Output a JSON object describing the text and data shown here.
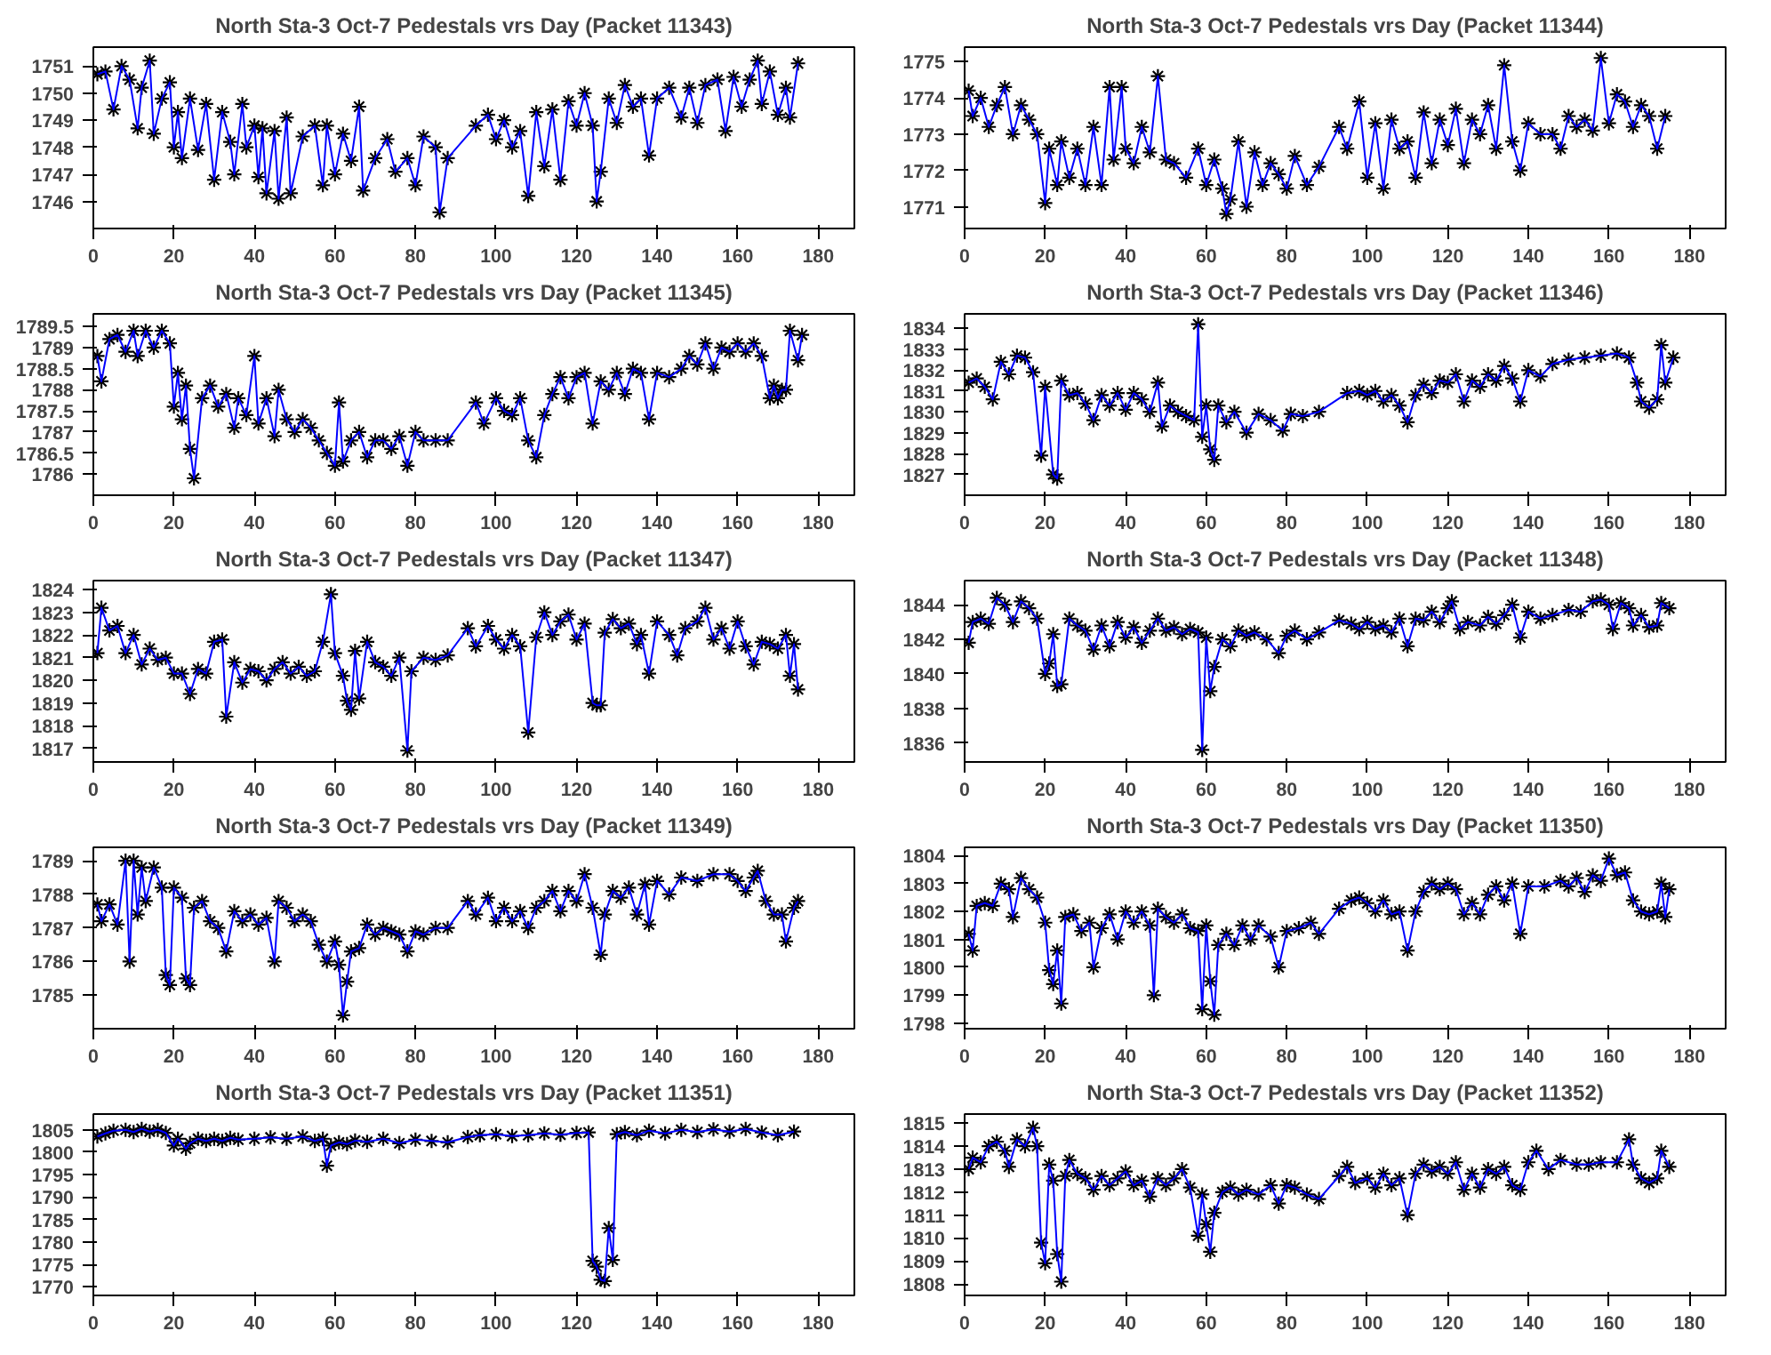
{
  "chart_data": [
    {
      "type": "line",
      "title": "North Sta-3 Oct-7 Pedestals vrs Day (Packet 11343)",
      "color": "#0000ff",
      "marker": "cross",
      "grid": false,
      "xlim": [
        0,
        189
      ],
      "xticks": [
        0,
        20,
        40,
        60,
        80,
        100,
        120,
        140,
        160,
        180
      ],
      "ylim": [
        1745.0,
        1751.7
      ],
      "yticks": [
        1746,
        1747,
        1748,
        1749,
        1750,
        1751
      ],
      "x": [
        1,
        3,
        5,
        7,
        9,
        11,
        12,
        14,
        15,
        17,
        19,
        20,
        21,
        22,
        24,
        26,
        28,
        30,
        32,
        34,
        35,
        37,
        38,
        40,
        41,
        42,
        43,
        45,
        46,
        48,
        49,
        52,
        55,
        57,
        58,
        60,
        62,
        64,
        66,
        67,
        70,
        73,
        75,
        78,
        80,
        82,
        85,
        86,
        88,
        95,
        98,
        100,
        102,
        104,
        106,
        108,
        110,
        112,
        114,
        116,
        118,
        120,
        122,
        124,
        125,
        126,
        128,
        130,
        132,
        134,
        136,
        138,
        140,
        143,
        146,
        148,
        150,
        152,
        155,
        157,
        159,
        161,
        163,
        165,
        166,
        168,
        170,
        172,
        173,
        175
      ],
      "values": [
        1750.7,
        1750.8,
        1749.4,
        1751.0,
        1750.5,
        1748.7,
        1750.2,
        1751.2,
        1748.5,
        1749.8,
        1750.4,
        1748.0,
        1749.3,
        1747.6,
        1749.8,
        1747.9,
        1749.6,
        1746.8,
        1749.3,
        1748.2,
        1747.0,
        1749.6,
        1748.0,
        1748.8,
        1746.9,
        1748.7,
        1746.3,
        1748.6,
        1746.1,
        1749.1,
        1746.3,
        1748.4,
        1748.8,
        1746.6,
        1748.8,
        1747.0,
        1748.5,
        1747.5,
        1749.5,
        1746.4,
        1747.6,
        1748.3,
        1747.1,
        1747.6,
        1746.6,
        1748.4,
        1748.0,
        1745.6,
        1747.6,
        1748.8,
        1749.2,
        1748.3,
        1749.0,
        1748.0,
        1748.6,
        1746.2,
        1749.3,
        1747.3,
        1749.4,
        1746.8,
        1749.7,
        1748.8,
        1750.0,
        1748.8,
        1746.0,
        1747.1,
        1749.8,
        1748.9,
        1750.3,
        1749.5,
        1749.8,
        1747.7,
        1749.8,
        1750.2,
        1749.1,
        1750.2,
        1748.9,
        1750.3,
        1750.5,
        1748.6,
        1750.6,
        1749.5,
        1750.5,
        1751.2,
        1749.6,
        1750.8,
        1749.2,
        1750.2,
        1749.1,
        1751.1
      ]
    },
    {
      "type": "line",
      "title": "North Sta-3 Oct-7 Pedestals vrs Day (Packet 11344)",
      "color": "#0000ff",
      "marker": "cross",
      "grid": false,
      "xlim": [
        0,
        189
      ],
      "xticks": [
        0,
        20,
        40,
        60,
        80,
        100,
        120,
        140,
        160,
        180
      ],
      "ylim": [
        1770.4,
        1775.4
      ],
      "yticks": [
        1771,
        1772,
        1773,
        1774,
        1775
      ],
      "x": [
        1,
        2,
        4,
        6,
        8,
        10,
        12,
        14,
        16,
        18,
        20,
        21,
        23,
        24,
        26,
        28,
        30,
        32,
        34,
        36,
        37,
        39,
        40,
        42,
        44,
        46,
        48,
        50,
        52,
        55,
        58,
        60,
        62,
        64,
        65,
        66,
        68,
        70,
        72,
        74,
        76,
        78,
        80,
        82,
        85,
        88,
        93,
        95,
        98,
        100,
        102,
        104,
        106,
        108,
        110,
        112,
        114,
        116,
        118,
        120,
        122,
        124,
        126,
        128,
        130,
        132,
        134,
        136,
        138,
        140,
        143,
        146,
        148,
        150,
        152,
        154,
        156,
        158,
        160,
        162,
        164,
        166,
        168,
        170,
        172,
        174
      ],
      "values": [
        1774.2,
        1773.5,
        1774.0,
        1773.2,
        1773.8,
        1774.3,
        1773.0,
        1773.8,
        1773.4,
        1773.0,
        1771.1,
        1772.6,
        1771.6,
        1772.8,
        1771.8,
        1772.6,
        1771.6,
        1773.2,
        1771.6,
        1774.3,
        1772.3,
        1774.3,
        1772.6,
        1772.2,
        1773.2,
        1772.5,
        1774.6,
        1772.3,
        1772.2,
        1771.8,
        1772.6,
        1771.6,
        1772.3,
        1771.5,
        1770.8,
        1771.2,
        1772.8,
        1771.0,
        1772.5,
        1771.6,
        1772.2,
        1771.9,
        1771.5,
        1772.4,
        1771.6,
        1772.1,
        1773.2,
        1772.6,
        1773.9,
        1771.8,
        1773.3,
        1771.5,
        1773.4,
        1772.6,
        1772.8,
        1771.8,
        1773.6,
        1772.2,
        1773.4,
        1772.7,
        1773.7,
        1772.2,
        1773.4,
        1773.0,
        1773.8,
        1772.6,
        1774.9,
        1772.8,
        1772.0,
        1773.3,
        1773.0,
        1773.0,
        1772.6,
        1773.5,
        1773.2,
        1773.4,
        1773.1,
        1775.1,
        1773.3,
        1774.1,
        1773.9,
        1773.2,
        1773.8,
        1773.5,
        1772.6,
        1773.5
      ]
    },
    {
      "type": "line",
      "title": "North Sta-3 Oct-7 Pedestals vrs Day (Packet 11345)",
      "color": "#0000ff",
      "marker": "cross",
      "grid": false,
      "xlim": [
        0,
        189
      ],
      "xticks": [
        0,
        20,
        40,
        60,
        80,
        100,
        120,
        140,
        160,
        180
      ],
      "ylim": [
        1785.5,
        1789.8
      ],
      "yticks": [
        1786,
        1786.5,
        1787,
        1787.5,
        1788,
        1788.5,
        1789,
        1789.5
      ],
      "x": [
        1,
        2,
        4,
        6,
        8,
        10,
        11,
        13,
        15,
        17,
        19,
        20,
        21,
        22,
        23,
        24,
        25,
        27,
        29,
        31,
        33,
        35,
        36,
        38,
        40,
        41,
        43,
        45,
        46,
        48,
        50,
        52,
        54,
        56,
        58,
        60,
        61,
        62,
        64,
        66,
        68,
        70,
        72,
        74,
        76,
        78,
        80,
        82,
        85,
        88,
        95,
        97,
        100,
        102,
        104,
        106,
        108,
        110,
        112,
        114,
        116,
        118,
        120,
        122,
        124,
        126,
        128,
        130,
        132,
        134,
        136,
        138,
        140,
        143,
        146,
        148,
        150,
        152,
        154,
        156,
        158,
        160,
        162,
        164,
        166,
        168,
        169,
        170,
        171,
        172,
        173,
        175,
        176
      ],
      "values": [
        1788.8,
        1788.2,
        1789.2,
        1789.3,
        1788.9,
        1789.4,
        1788.8,
        1789.4,
        1789.0,
        1789.4,
        1789.1,
        1787.6,
        1788.4,
        1787.3,
        1788.1,
        1786.6,
        1785.9,
        1787.8,
        1788.1,
        1787.6,
        1787.9,
        1787.1,
        1787.8,
        1787.4,
        1788.8,
        1787.2,
        1787.8,
        1786.9,
        1788.0,
        1787.3,
        1787.0,
        1787.3,
        1787.1,
        1786.8,
        1786.5,
        1786.2,
        1787.7,
        1786.3,
        1786.8,
        1787.0,
        1786.4,
        1786.8,
        1786.8,
        1786.6,
        1786.9,
        1786.2,
        1787.0,
        1786.8,
        1786.8,
        1786.8,
        1787.7,
        1787.2,
        1787.8,
        1787.5,
        1787.4,
        1787.8,
        1786.8,
        1786.4,
        1787.4,
        1787.9,
        1788.3,
        1787.8,
        1788.3,
        1788.4,
        1787.2,
        1788.2,
        1788.0,
        1788.4,
        1787.9,
        1788.5,
        1788.4,
        1787.3,
        1788.4,
        1788.3,
        1788.5,
        1788.8,
        1788.6,
        1789.1,
        1788.5,
        1789.0,
        1788.9,
        1789.1,
        1788.9,
        1789.1,
        1788.8,
        1787.8,
        1788.1,
        1787.8,
        1788.0,
        1788.0,
        1789.4,
        1788.7,
        1789.3
      ]
    },
    {
      "type": "line",
      "title": "North Sta-3 Oct-7 Pedestals vrs Day (Packet 11346)",
      "color": "#0000ff",
      "marker": "cross",
      "grid": false,
      "xlim": [
        0,
        189
      ],
      "xticks": [
        0,
        20,
        40,
        60,
        80,
        100,
        120,
        140,
        160,
        180
      ],
      "ylim": [
        1826.0,
        1834.7
      ],
      "yticks": [
        1827,
        1828,
        1829,
        1830,
        1831,
        1832,
        1833,
        1834
      ],
      "x": [
        1,
        3,
        5,
        7,
        9,
        11,
        13,
        15,
        17,
        19,
        20,
        22,
        23,
        24,
        26,
        28,
        30,
        32,
        34,
        36,
        38,
        40,
        42,
        44,
        46,
        48,
        49,
        51,
        53,
        55,
        57,
        58,
        59,
        60,
        61,
        62,
        63,
        65,
        67,
        70,
        73,
        76,
        79,
        81,
        84,
        88,
        95,
        98,
        100,
        102,
        104,
        106,
        108,
        110,
        112,
        114,
        116,
        118,
        120,
        122,
        124,
        126,
        128,
        130,
        132,
        134,
        136,
        138,
        140,
        143,
        146,
        150,
        154,
        158,
        162,
        165,
        167,
        168,
        170,
        172,
        173,
        174,
        176
      ],
      "values": [
        1831.4,
        1831.6,
        1831.2,
        1830.6,
        1832.4,
        1831.8,
        1832.7,
        1832.6,
        1831.9,
        1827.9,
        1831.2,
        1827.0,
        1826.8,
        1831.5,
        1830.8,
        1830.9,
        1830.4,
        1829.6,
        1830.8,
        1830.3,
        1830.9,
        1830.1,
        1830.9,
        1830.6,
        1830.0,
        1831.4,
        1829.3,
        1830.3,
        1830.0,
        1829.8,
        1829.6,
        1834.2,
        1828.8,
        1830.3,
        1828.2,
        1827.7,
        1830.3,
        1829.5,
        1830.0,
        1829.0,
        1829.9,
        1829.6,
        1829.1,
        1829.9,
        1829.8,
        1830.0,
        1830.9,
        1831.0,
        1830.8,
        1831.0,
        1830.5,
        1830.8,
        1830.3,
        1829.5,
        1830.8,
        1831.3,
        1830.9,
        1831.5,
        1831.4,
        1831.8,
        1830.5,
        1831.5,
        1831.2,
        1831.8,
        1831.5,
        1832.2,
        1831.6,
        1830.5,
        1832.0,
        1831.7,
        1832.3,
        1832.5,
        1832.6,
        1832.7,
        1832.8,
        1832.6,
        1831.4,
        1830.5,
        1830.2,
        1830.6,
        1833.2,
        1831.4,
        1832.6
      ]
    },
    {
      "type": "line",
      "title": "North Sta-3 Oct-7 Pedestals vrs Day (Packet 11347)",
      "color": "#0000ff",
      "marker": "cross",
      "grid": false,
      "xlim": [
        0,
        189
      ],
      "xticks": [
        0,
        20,
        40,
        60,
        80,
        100,
        120,
        140,
        160,
        180
      ],
      "ylim": [
        1816.4,
        1824.4
      ],
      "yticks": [
        1817,
        1818,
        1819,
        1820,
        1821,
        1822,
        1823,
        1824
      ],
      "x": [
        1,
        2,
        4,
        6,
        8,
        10,
        12,
        14,
        16,
        18,
        20,
        22,
        24,
        26,
        28,
        30,
        32,
        33,
        35,
        37,
        39,
        41,
        43,
        45,
        47,
        49,
        51,
        53,
        55,
        57,
        59,
        60,
        62,
        63,
        64,
        65,
        66,
        68,
        70,
        72,
        74,
        76,
        78,
        79,
        82,
        85,
        88,
        93,
        95,
        98,
        100,
        102,
        104,
        106,
        108,
        110,
        112,
        114,
        116,
        118,
        120,
        122,
        124,
        125,
        126,
        127,
        129,
        131,
        133,
        135,
        136,
        138,
        140,
        143,
        145,
        147,
        150,
        152,
        154,
        156,
        158,
        160,
        162,
        164,
        166,
        168,
        170,
        172,
        173,
        174,
        175
      ],
      "values": [
        1821.2,
        1823.2,
        1822.2,
        1822.4,
        1821.2,
        1822.0,
        1820.7,
        1821.4,
        1820.9,
        1821.0,
        1820.3,
        1820.3,
        1819.4,
        1820.5,
        1820.3,
        1821.7,
        1821.8,
        1818.4,
        1820.8,
        1819.9,
        1820.5,
        1820.4,
        1820.0,
        1820.5,
        1820.8,
        1820.3,
        1820.6,
        1820.2,
        1820.4,
        1821.7,
        1823.8,
        1821.2,
        1820.2,
        1819.1,
        1818.7,
        1821.3,
        1819.2,
        1821.7,
        1820.8,
        1820.6,
        1820.2,
        1821.0,
        1816.9,
        1820.4,
        1821.0,
        1820.9,
        1821.1,
        1822.3,
        1821.5,
        1822.4,
        1821.8,
        1821.4,
        1822.0,
        1821.5,
        1817.7,
        1821.9,
        1823.0,
        1822.0,
        1822.6,
        1822.9,
        1821.8,
        1822.5,
        1819.0,
        1818.9,
        1818.9,
        1822.1,
        1822.7,
        1822.3,
        1822.5,
        1821.6,
        1822.0,
        1820.3,
        1822.6,
        1822.0,
        1821.1,
        1822.3,
        1822.6,
        1823.2,
        1821.8,
        1822.3,
        1821.4,
        1822.6,
        1821.5,
        1820.7,
        1821.7,
        1821.6,
        1821.4,
        1822.0,
        1820.2,
        1821.6,
        1819.6
      ]
    },
    {
      "type": "line",
      "title": "North Sta-3 Oct-7 Pedestals vrs Day (Packet 11348)",
      "color": "#0000ff",
      "marker": "cross",
      "grid": false,
      "xlim": [
        0,
        189
      ],
      "xticks": [
        0,
        20,
        40,
        60,
        80,
        100,
        120,
        140,
        160,
        180
      ],
      "ylim": [
        1834.9,
        1845.4
      ],
      "yticks": [
        1836,
        1838,
        1840,
        1842,
        1844
      ],
      "x": [
        1,
        2,
        4,
        6,
        8,
        10,
        12,
        14,
        16,
        18,
        20,
        21,
        22,
        23,
        24,
        26,
        28,
        30,
        32,
        34,
        36,
        38,
        40,
        42,
        44,
        46,
        48,
        50,
        52,
        54,
        56,
        58,
        59,
        60,
        61,
        62,
        64,
        66,
        68,
        70,
        72,
        75,
        78,
        80,
        82,
        85,
        88,
        93,
        96,
        98,
        100,
        102,
        104,
        106,
        108,
        110,
        112,
        114,
        116,
        118,
        120,
        121,
        123,
        125,
        128,
        130,
        132,
        134,
        136,
        138,
        140,
        143,
        146,
        150,
        153,
        156,
        158,
        160,
        161,
        163,
        165,
        166,
        168,
        170,
        172,
        173,
        175
      ],
      "values": [
        1841.8,
        1843.0,
        1843.2,
        1842.9,
        1844.4,
        1844.0,
        1843.0,
        1844.2,
        1843.8,
        1843.2,
        1840.0,
        1840.6,
        1842.3,
        1839.3,
        1839.4,
        1843.2,
        1842.8,
        1842.5,
        1841.4,
        1842.8,
        1841.6,
        1843.0,
        1842.1,
        1842.7,
        1841.8,
        1842.5,
        1843.2,
        1842.5,
        1842.7,
        1842.3,
        1842.6,
        1842.4,
        1835.6,
        1842.1,
        1839.0,
        1840.4,
        1842.0,
        1841.6,
        1842.5,
        1842.2,
        1842.4,
        1842.0,
        1841.2,
        1842.2,
        1842.5,
        1842.0,
        1842.4,
        1843.1,
        1842.9,
        1842.6,
        1843.0,
        1842.6,
        1842.8,
        1842.4,
        1843.2,
        1841.6,
        1843.2,
        1843.1,
        1843.6,
        1843.0,
        1843.8,
        1844.2,
        1842.6,
        1843.0,
        1842.8,
        1843.3,
        1842.9,
        1843.4,
        1844.0,
        1842.1,
        1843.6,
        1843.2,
        1843.4,
        1843.7,
        1843.6,
        1844.2,
        1844.3,
        1844.0,
        1842.6,
        1844.1,
        1843.8,
        1842.8,
        1843.4,
        1842.7,
        1842.8,
        1844.1,
        1843.8
      ]
    },
    {
      "type": "line",
      "title": "North Sta-3 Oct-7 Pedestals vrs Day (Packet 11349)",
      "color": "#0000ff",
      "marker": "cross",
      "grid": false,
      "xlim": [
        0,
        189
      ],
      "xticks": [
        0,
        20,
        40,
        60,
        80,
        100,
        120,
        140,
        160,
        180
      ],
      "ylim": [
        1784.0,
        1789.4
      ],
      "yticks": [
        1785,
        1786,
        1787,
        1788,
        1789
      ],
      "x": [
        1,
        2,
        4,
        6,
        8,
        9,
        10,
        11,
        12,
        13,
        15,
        17,
        18,
        19,
        20,
        22,
        23,
        24,
        25,
        27,
        29,
        31,
        33,
        35,
        37,
        39,
        41,
        43,
        45,
        46,
        48,
        50,
        52,
        54,
        56,
        58,
        60,
        61,
        62,
        63,
        64,
        66,
        68,
        70,
        72,
        74,
        76,
        78,
        80,
        82,
        85,
        88,
        93,
        95,
        98,
        100,
        102,
        104,
        106,
        108,
        110,
        112,
        114,
        116,
        118,
        120,
        122,
        124,
        126,
        127,
        129,
        131,
        133,
        135,
        137,
        138,
        140,
        143,
        146,
        150,
        154,
        158,
        160,
        162,
        164,
        165,
        167,
        169,
        171,
        172,
        174,
        175
      ],
      "values": [
        1787.7,
        1787.2,
        1787.7,
        1787.1,
        1789.0,
        1786.0,
        1789.0,
        1787.4,
        1788.8,
        1787.8,
        1788.8,
        1788.2,
        1785.6,
        1785.3,
        1788.2,
        1787.9,
        1785.5,
        1785.3,
        1787.6,
        1787.8,
        1787.2,
        1787.0,
        1786.3,
        1787.5,
        1787.2,
        1787.4,
        1787.1,
        1787.3,
        1786.0,
        1787.8,
        1787.6,
        1787.2,
        1787.4,
        1787.2,
        1786.5,
        1786.0,
        1786.6,
        1785.9,
        1784.4,
        1785.4,
        1786.3,
        1786.4,
        1787.1,
        1786.8,
        1787.0,
        1786.9,
        1786.8,
        1786.3,
        1786.9,
        1786.8,
        1787.0,
        1787.0,
        1787.8,
        1787.4,
        1787.9,
        1787.2,
        1787.6,
        1787.2,
        1787.5,
        1787.0,
        1787.6,
        1787.8,
        1788.1,
        1787.5,
        1788.1,
        1787.8,
        1788.6,
        1787.6,
        1786.2,
        1787.4,
        1788.1,
        1787.9,
        1788.2,
        1787.4,
        1788.3,
        1787.1,
        1788.4,
        1788.0,
        1788.5,
        1788.4,
        1788.6,
        1788.6,
        1788.4,
        1788.1,
        1788.5,
        1788.7,
        1787.8,
        1787.4,
        1787.4,
        1786.6,
        1787.6,
        1787.8
      ]
    },
    {
      "type": "line",
      "title": "North Sta-3 Oct-7 Pedestals vrs Day (Packet 11350)",
      "color": "#0000ff",
      "marker": "cross",
      "grid": false,
      "xlim": [
        0,
        189
      ],
      "xticks": [
        0,
        20,
        40,
        60,
        80,
        100,
        120,
        140,
        160,
        180
      ],
      "ylim": [
        1797.8,
        1804.3
      ],
      "yticks": [
        1798,
        1799,
        1800,
        1801,
        1802,
        1803,
        1804
      ],
      "x": [
        1,
        2,
        3,
        5,
        7,
        9,
        11,
        12,
        14,
        16,
        18,
        20,
        21,
        22,
        23,
        24,
        25,
        27,
        29,
        31,
        32,
        34,
        36,
        38,
        40,
        42,
        44,
        46,
        47,
        48,
        50,
        52,
        54,
        56,
        58,
        59,
        60,
        61,
        62,
        63,
        65,
        67,
        69,
        71,
        73,
        76,
        78,
        80,
        83,
        86,
        88,
        93,
        96,
        98,
        100,
        102,
        104,
        106,
        108,
        110,
        112,
        114,
        116,
        118,
        120,
        122,
        124,
        126,
        128,
        130,
        132,
        134,
        136,
        138,
        140,
        144,
        148,
        150,
        152,
        154,
        156,
        158,
        160,
        162,
        164,
        166,
        168,
        170,
        172,
        173,
        174,
        175
      ],
      "values": [
        1801.2,
        1800.6,
        1802.2,
        1802.3,
        1802.2,
        1803.0,
        1802.8,
        1801.8,
        1803.2,
        1802.8,
        1802.5,
        1801.6,
        1799.9,
        1799.4,
        1800.6,
        1798.7,
        1801.8,
        1801.9,
        1801.3,
        1801.6,
        1800.0,
        1801.4,
        1801.9,
        1801.0,
        1802.0,
        1801.6,
        1802.0,
        1801.5,
        1799.0,
        1802.1,
        1801.8,
        1801.6,
        1801.9,
        1801.4,
        1801.3,
        1798.5,
        1801.5,
        1799.5,
        1798.3,
        1800.8,
        1801.2,
        1800.8,
        1801.5,
        1801.0,
        1801.5,
        1801.1,
        1800.0,
        1801.3,
        1801.4,
        1801.6,
        1801.2,
        1802.1,
        1802.4,
        1802.5,
        1802.3,
        1802.0,
        1802.4,
        1801.9,
        1802.0,
        1800.6,
        1802.0,
        1802.7,
        1803.0,
        1802.8,
        1803.0,
        1802.8,
        1801.9,
        1802.3,
        1801.9,
        1802.6,
        1802.9,
        1802.4,
        1803.0,
        1801.2,
        1802.9,
        1802.9,
        1803.1,
        1802.9,
        1803.2,
        1802.7,
        1803.3,
        1803.1,
        1803.9,
        1803.3,
        1803.4,
        1802.4,
        1802.0,
        1801.9,
        1802.0,
        1803.0,
        1801.8,
        1802.8
      ]
    },
    {
      "type": "line",
      "title": "North Sta-3 Oct-7 Pedestals vrs Day (Packet 11351)",
      "color": "#0000ff",
      "marker": "cross",
      "grid": false,
      "xlim": [
        0,
        189
      ],
      "xticks": [
        0,
        20,
        40,
        60,
        80,
        100,
        120,
        140,
        160,
        180
      ],
      "ylim": [
        1768.1,
        1808.5
      ],
      "yticks": [
        1770,
        1775,
        1780,
        1785,
        1790,
        1795,
        1800,
        1805
      ],
      "x": [
        1,
        3,
        5,
        8,
        10,
        12,
        14,
        16,
        18,
        20,
        21,
        23,
        24,
        26,
        28,
        30,
        32,
        34,
        36,
        40,
        44,
        48,
        52,
        55,
        57,
        58,
        59,
        61,
        63,
        65,
        68,
        72,
        76,
        80,
        84,
        88,
        93,
        96,
        100,
        104,
        108,
        112,
        116,
        120,
        123,
        124,
        125,
        126,
        127,
        128,
        129,
        130,
        132,
        135,
        138,
        142,
        146,
        150,
        154,
        158,
        162,
        166,
        170,
        174
      ],
      "values": [
        1803.5,
        1804.2,
        1804.8,
        1805.0,
        1804.5,
        1805.2,
        1804.6,
        1805.0,
        1804.3,
        1801.5,
        1803.0,
        1800.8,
        1802.0,
        1803.0,
        1802.5,
        1803.0,
        1802.5,
        1803.2,
        1802.8,
        1803.0,
        1803.3,
        1803.0,
        1803.5,
        1802.5,
        1803.0,
        1797.0,
        1801.5,
        1802.2,
        1801.8,
        1802.6,
        1802.3,
        1803.0,
        1802.0,
        1802.8,
        1802.5,
        1802.2,
        1803.4,
        1803.8,
        1804.0,
        1803.6,
        1803.8,
        1804.2,
        1803.9,
        1804.3,
        1804.4,
        1775.8,
        1774.5,
        1771.6,
        1771.3,
        1783.1,
        1776.0,
        1804.0,
        1804.5,
        1803.8,
        1804.8,
        1804.2,
        1805.0,
        1804.5,
        1805.1,
        1804.6,
        1805.2,
        1804.4,
        1803.8,
        1804.6
      ]
    },
    {
      "type": "line",
      "title": "North Sta-3 Oct-7 Pedestals vrs Day (Packet 11352)",
      "color": "#0000ff",
      "marker": "cross",
      "grid": false,
      "xlim": [
        0,
        189
      ],
      "xticks": [
        0,
        20,
        40,
        60,
        80,
        100,
        120,
        140,
        160,
        180
      ],
      "ylim": [
        1807.5,
        1815.4
      ],
      "yticks": [
        1808,
        1809,
        1810,
        1811,
        1812,
        1813,
        1814,
        1815
      ],
      "x": [
        1,
        2,
        4,
        6,
        8,
        10,
        11,
        13,
        15,
        17,
        18,
        19,
        20,
        21,
        22,
        23,
        24,
        25,
        26,
        28,
        30,
        32,
        34,
        36,
        38,
        40,
        42,
        44,
        46,
        48,
        50,
        52,
        54,
        56,
        58,
        59,
        60,
        61,
        62,
        64,
        66,
        68,
        70,
        73,
        76,
        78,
        80,
        82,
        85,
        88,
        93,
        95,
        97,
        100,
        102,
        104,
        106,
        108,
        110,
        112,
        114,
        116,
        118,
        120,
        122,
        124,
        126,
        128,
        130,
        132,
        134,
        136,
        138,
        140,
        142,
        145,
        148,
        152,
        155,
        158,
        162,
        165,
        166,
        168,
        170,
        172,
        173,
        175
      ],
      "values": [
        1813.0,
        1813.5,
        1813.3,
        1814.0,
        1814.2,
        1813.8,
        1813.1,
        1814.3,
        1814.0,
        1814.8,
        1814.0,
        1809.8,
        1808.9,
        1813.2,
        1812.5,
        1809.3,
        1808.1,
        1812.7,
        1813.4,
        1812.8,
        1812.6,
        1812.1,
        1812.7,
        1812.3,
        1812.6,
        1812.9,
        1812.3,
        1812.5,
        1811.8,
        1812.6,
        1812.3,
        1812.6,
        1813.0,
        1812.2,
        1810.1,
        1811.9,
        1810.6,
        1809.4,
        1811.1,
        1812.0,
        1812.2,
        1811.9,
        1812.1,
        1811.9,
        1812.3,
        1811.5,
        1812.3,
        1812.2,
        1811.9,
        1811.7,
        1812.7,
        1813.1,
        1812.4,
        1812.6,
        1812.2,
        1812.8,
        1812.3,
        1812.6,
        1811.0,
        1812.8,
        1813.2,
        1812.9,
        1813.1,
        1812.8,
        1813.3,
        1812.1,
        1812.8,
        1812.2,
        1813.0,
        1812.8,
        1813.1,
        1812.3,
        1812.1,
        1813.3,
        1813.8,
        1813.0,
        1813.4,
        1813.2,
        1813.2,
        1813.3,
        1813.3,
        1814.3,
        1813.2,
        1812.6,
        1812.4,
        1812.6,
        1813.8,
        1813.1
      ]
    }
  ]
}
